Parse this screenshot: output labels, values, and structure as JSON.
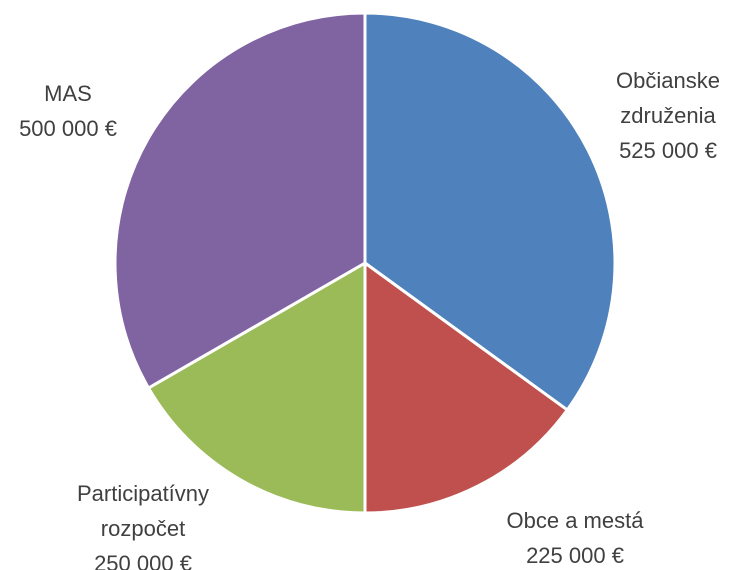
{
  "chart_data": {
    "type": "pie",
    "categories": [
      "Občianske združenia",
      "Obce a mestá",
      "Participatívny rozpočet",
      "MAS"
    ],
    "values": [
      525000,
      225000,
      250000,
      500000
    ],
    "value_labels": [
      "525 000 €",
      "225 000 €",
      "250 000 €",
      "500 000 €"
    ],
    "colors": [
      "#4f81bd",
      "#c0504d",
      "#9bbb59",
      "#8064a2"
    ]
  }
}
